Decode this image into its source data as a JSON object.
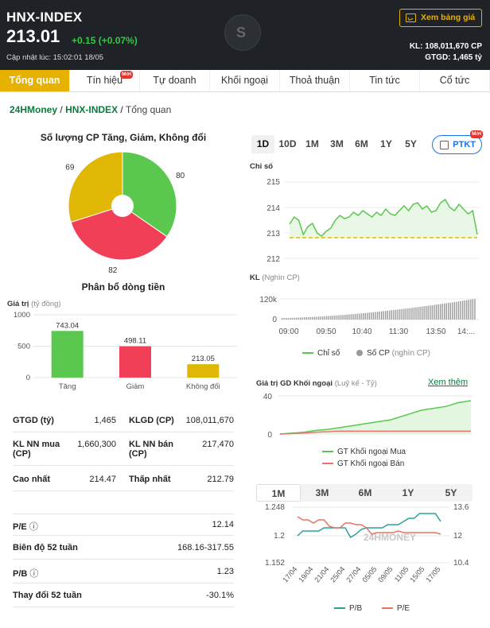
{
  "header": {
    "title": "HNX-INDEX",
    "price": "213.01",
    "change": "+0.15 (+0.07%)",
    "updated": "Cập nhật lúc: 15:02:01 18/05",
    "view_price_button": "Xem bảng giá",
    "kl": "KL: 108,011,670 CP",
    "gtgd": "GTGD: 1,465 tỷ"
  },
  "tabs": [
    {
      "label": "Tổng quan",
      "active": true
    },
    {
      "label": "Tín hiệu",
      "badge": "Mới"
    },
    {
      "label": "Tự doanh"
    },
    {
      "label": "Khối ngoại"
    },
    {
      "label": "Thoả thuận"
    },
    {
      "label": "Tin tức"
    },
    {
      "label": "Cổ tức"
    }
  ],
  "breadcrumb": {
    "root": "24HMoney",
    "sep": "/",
    "index": "HNX-INDEX",
    "current": "Tổng quan"
  },
  "pie": {
    "title": "Số lượng CP Tăng, Giảm, Không đổi",
    "colors": {
      "up": "#5ac84f",
      "down": "#f03f56",
      "flat": "#e1b706"
    }
  },
  "flow": {
    "title": "Phân bổ dòng tiền",
    "axis_title": "Giá trị",
    "axis_unit": "(tỷ đồng)",
    "value_labels": [
      "743.04",
      "498.11",
      "213.05"
    ],
    "categories": [
      "Tăng",
      "Giảm",
      "Không đổi"
    ],
    "ticks": [
      "1000",
      "500",
      "0"
    ]
  },
  "stats": [
    {
      "l1": "GTGD (tỷ)",
      "v1": "1,465",
      "l2": "KLGD (CP)",
      "v2": "108,011,670"
    },
    {
      "l1": "KL NN mua (CP)",
      "v1": "1,660,300",
      "l2": "KL NN bán (CP)",
      "v2": "217,470"
    },
    {
      "l1": "Cao nhất",
      "v1": "214.47",
      "l2": "Thấp nhất",
      "v2": "212.79"
    }
  ],
  "ratios": [
    {
      "label": "P/E",
      "info": true,
      "value": "12.14"
    },
    {
      "label": "Biên độ 52 tuần",
      "info": false,
      "value": "168.16-317.55"
    },
    {
      "label": "P/B",
      "info": true,
      "value": "1.23"
    },
    {
      "label": "Thay đổi 52 tuần",
      "info": false,
      "value": "-30.1%"
    }
  ],
  "range_buttons": [
    "1D",
    "10D",
    "1M",
    "3M",
    "6M",
    "1Y",
    "5Y"
  ],
  "ptkt": {
    "label": "PTKT",
    "badge": "Mới"
  },
  "index_chart": {
    "label": "Chỉ số",
    "vol_label": "KL",
    "vol_unit": "(Nghìn CP)",
    "y_ticks": [
      "215",
      "214",
      "213",
      "212"
    ],
    "vol_tick": "120k",
    "vol_zero": "0",
    "x_ticks": [
      "09:00",
      "09:50",
      "10:40",
      "11:30",
      "13:50",
      "14:..."
    ],
    "legend_index": "Chỉ số",
    "legend_vol": "Số CP",
    "legend_vol_unit": "(nghìn CP)"
  },
  "foreign": {
    "title": "Giá trị GD Khối ngoại",
    "unit": "(Luỹ kế - Tỷ)",
    "link": "Xem thêm",
    "y_ticks": [
      "40",
      "0"
    ],
    "legend_buy": "GT Khối ngoại Mua",
    "legend_sell": "GT Khối ngoại Bán"
  },
  "period_buttons": [
    "1M",
    "3M",
    "6M",
    "1Y",
    "5Y"
  ],
  "pepb": {
    "left_ticks": [
      "1.248",
      "1.2",
      "1.152"
    ],
    "right_ticks": [
      "13.6",
      "12",
      "10.4"
    ],
    "x_ticks": [
      "17/04",
      "19/04",
      "21/04",
      "25/04",
      "27/04",
      "05/05",
      "09/05",
      "11/05",
      "15/05",
      "17/05"
    ],
    "legend_pb": "P/B",
    "legend_pe": "P/E",
    "watermark": "24HMONEY"
  },
  "chart_data": [
    {
      "type": "pie",
      "title": "Số lượng CP Tăng, Giảm, Không đổi",
      "categories": [
        "Tăng",
        "Giảm",
        "Không đổi"
      ],
      "values": [
        80,
        82,
        69
      ]
    },
    {
      "type": "bar",
      "title": "Phân bổ dòng tiền",
      "ylabel": "Giá trị (tỷ đồng)",
      "categories": [
        "Tăng",
        "Giảm",
        "Không đổi"
      ],
      "values": [
        743.04,
        498.11,
        213.05
      ],
      "ylim": [
        0,
        1000
      ]
    }
  ]
}
